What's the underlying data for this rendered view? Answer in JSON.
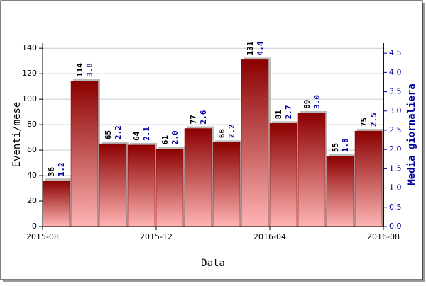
{
  "chart_data": {
    "type": "bar",
    "x": [
      "2015-08",
      "2015-09",
      "2015-10",
      "2015-11",
      "2015-12",
      "2016-01",
      "2016-02",
      "2016-03",
      "2016-04",
      "2016-05",
      "2016-06",
      "2016-07"
    ],
    "xlim": [
      "2015-08",
      "2016-08"
    ],
    "xticks": [
      "2015-08",
      "2015-12",
      "2016-04",
      "2016-08"
    ],
    "xlabel": "Data",
    "ylabel": "Eventi/mese",
    "y2label": "Media giornaliera",
    "ylim": [
      0,
      144
    ],
    "yticks": [
      0,
      20,
      40,
      60,
      80,
      100,
      120,
      140
    ],
    "y2lim": [
      0,
      4.76
    ],
    "y2ticks": [
      {
        "value": 0,
        "label": "0.0"
      },
      {
        "value": 0.5,
        "label": "0.5"
      },
      {
        "value": 1,
        "label": "1.0"
      },
      {
        "value": 1.5,
        "label": "1.5"
      },
      {
        "value": 2,
        "label": "2.0"
      },
      {
        "value": 2.5,
        "label": "2.5"
      },
      {
        "value": 3,
        "label": "3.0"
      },
      {
        "value": 3.5,
        "label": "3.5"
      },
      {
        "value": 4,
        "label": "4.0"
      },
      {
        "value": 4.5,
        "label": "4.5"
      }
    ],
    "grid": true,
    "series": [
      {
        "color": "#8b0000",
        "values": [
          36,
          114,
          65,
          64,
          61,
          77,
          66,
          131,
          81,
          89,
          55,
          75
        ]
      },
      {
        "color": "#0000a0",
        "axis": "y2",
        "values": [
          1.2,
          3.8,
          2.2,
          2.1,
          2,
          2.6,
          2.2,
          4.4,
          2.7,
          3,
          1.8,
          2.5
        ],
        "value_labels": [
          "1.2",
          "3.8",
          "2.2",
          "2.1",
          "2.0",
          "2.6",
          "2.2",
          "4.4",
          "2.7",
          "3.0",
          "1.8",
          "2.5"
        ]
      }
    ]
  }
}
